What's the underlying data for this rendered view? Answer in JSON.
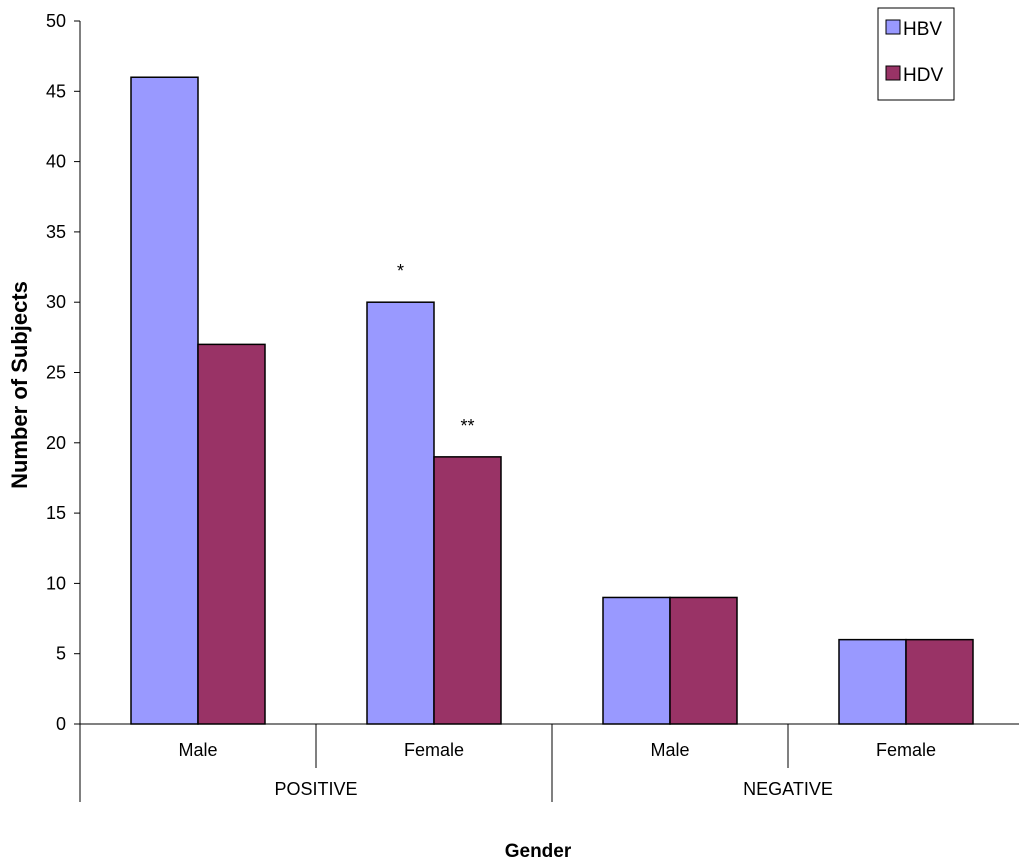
{
  "chart_data": {
    "type": "bar",
    "title": "",
    "ylabel": "Number of Subjects",
    "xlabel": "Gender",
    "ylim": [
      0,
      50
    ],
    "yticks": [
      0,
      5,
      10,
      15,
      20,
      25,
      30,
      35,
      40,
      45,
      50
    ],
    "grid": false,
    "legend_position": "top-right",
    "categories": [
      "Male",
      "Female",
      "Male",
      "Female"
    ],
    "groups": [
      {
        "label": "POSITIVE",
        "categories": [
          "Male",
          "Female"
        ]
      },
      {
        "label": "NEGATIVE",
        "categories": [
          "Male",
          "Female"
        ]
      }
    ],
    "series": [
      {
        "name": "HBV",
        "color": "#9999ff",
        "values": [
          46,
          30,
          9,
          6
        ]
      },
      {
        "name": "HDV",
        "color": "#993366",
        "values": [
          27,
          19,
          9,
          6
        ]
      }
    ],
    "annotations": [
      {
        "text": "*",
        "category_index": 1,
        "series_index": 0
      },
      {
        "text": "**",
        "category_index": 1,
        "series_index": 1
      }
    ]
  }
}
